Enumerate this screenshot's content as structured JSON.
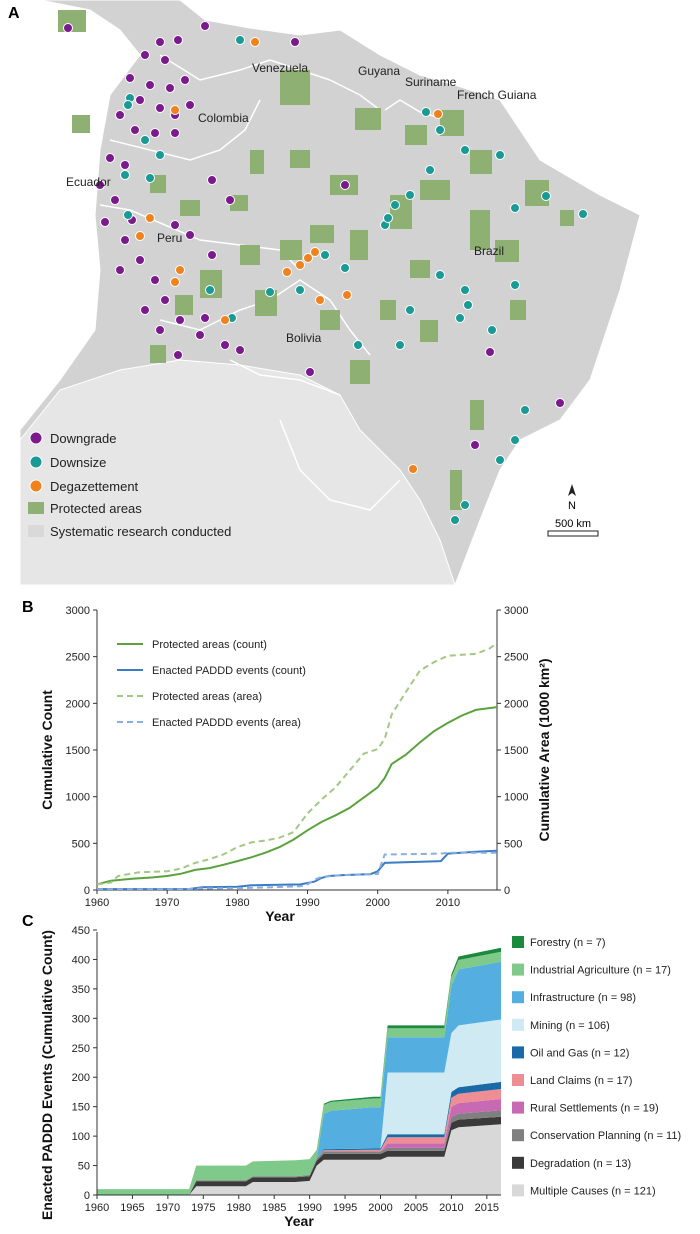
{
  "panels": {
    "a": "A",
    "b": "B",
    "c": "C"
  },
  "map": {
    "countries": [
      "Venezuela",
      "Guyana",
      "Suriname",
      "French Guiana",
      "Colombia",
      "Ecuador",
      "Peru",
      "Brazil",
      "Bolivia"
    ],
    "legend": [
      "Downgrade",
      "Downsize",
      "Degazettement",
      "Protected areas",
      "Systematic research conducted"
    ],
    "north": "N",
    "scale": "500 km",
    "colors": {
      "downgrade": "#7b1a8c",
      "downsize": "#1a9a95",
      "degazettement": "#f0821e",
      "protected": "#8fb073",
      "land": "#d0d0d0",
      "research": "#e4e4e4"
    }
  },
  "chart_data": [
    {
      "type": "line",
      "panel": "B",
      "xlabel": "Year",
      "ylabel": "Cumulative Count",
      "ylabel_right": "Cumulative Area (1000 km²)",
      "xlim": [
        1960,
        2017
      ],
      "ylim": [
        0,
        3000
      ],
      "xticks": [
        "1960",
        "1970",
        "1980",
        "1990",
        "2000",
        "2010"
      ],
      "yticks": [
        "0",
        "500",
        "1000",
        "1500",
        "2000",
        "2500",
        "3000"
      ],
      "series": [
        {
          "name": "Protected areas (count)",
          "color": "#5aa33c",
          "dash": false,
          "x": [
            1960,
            1962,
            1965,
            1968,
            1970,
            1972,
            1974,
            1976,
            1978,
            1980,
            1982,
            1984,
            1986,
            1988,
            1990,
            1992,
            1994,
            1996,
            1998,
            2000,
            2001,
            2002,
            2004,
            2006,
            2008,
            2010,
            2012,
            2014,
            2017
          ],
          "y": [
            60,
            100,
            120,
            135,
            150,
            175,
            215,
            235,
            270,
            310,
            350,
            400,
            460,
            540,
            640,
            730,
            800,
            880,
            990,
            1100,
            1200,
            1350,
            1450,
            1580,
            1700,
            1790,
            1870,
            1930,
            1960
          ]
        },
        {
          "name": "Enacted PADDD events (count)",
          "color": "#3a7cc6",
          "dash": false,
          "x": [
            1960,
            1973,
            1975,
            1980,
            1982,
            1985,
            1989,
            1990,
            1991,
            1992,
            1993,
            1995,
            1999,
            2000,
            2001,
            2005,
            2009,
            2010,
            2014,
            2017
          ],
          "y": [
            10,
            10,
            30,
            35,
            50,
            55,
            60,
            75,
            90,
            130,
            150,
            160,
            170,
            200,
            290,
            300,
            310,
            390,
            410,
            420
          ]
        },
        {
          "name": "Protected areas (area)",
          "color": "#a3c885",
          "dash": true,
          "x": [
            1960,
            1962,
            1963,
            1966,
            1970,
            1972,
            1974,
            1976,
            1978,
            1980,
            1982,
            1984,
            1986,
            1988,
            1990,
            1992,
            1994,
            1996,
            1998,
            2000,
            2001,
            2002,
            2004,
            2006,
            2008,
            2010,
            2012,
            2014,
            2016,
            2017
          ],
          "y": [
            60,
            80,
            150,
            190,
            200,
            230,
            290,
            330,
            380,
            460,
            510,
            530,
            560,
            620,
            820,
            970,
            1100,
            1280,
            1460,
            1510,
            1620,
            1880,
            2120,
            2350,
            2440,
            2510,
            2520,
            2530,
            2590,
            2650
          ]
        },
        {
          "name": "Enacted PADDD events (area)",
          "color": "#8aaee0",
          "dash": true,
          "x": [
            1960,
            1972,
            1974,
            1980,
            1985,
            1989,
            1990,
            1991,
            1992,
            1995,
            2000,
            2001,
            2005,
            2009,
            2010,
            2017
          ],
          "y": [
            5,
            5,
            15,
            20,
            30,
            40,
            60,
            110,
            140,
            160,
            170,
            380,
            385,
            390,
            400,
            400
          ]
        }
      ]
    },
    {
      "type": "area",
      "panel": "C",
      "xlabel": "Year",
      "ylabel": "Enacted PADDD Events (Cumulative Count)",
      "xlim": [
        1960,
        2017
      ],
      "ylim": [
        0,
        450
      ],
      "xticks": [
        "1960",
        "1965",
        "1970",
        "1975",
        "1980",
        "1985",
        "1990",
        "1995",
        "2000",
        "2005",
        "2010",
        "2015"
      ],
      "yticks": [
        "0",
        "50",
        "100",
        "150",
        "200",
        "250",
        "300",
        "350",
        "400",
        "450"
      ],
      "x": [
        1960,
        1973,
        1974,
        1981,
        1982,
        1988,
        1990,
        1991,
        1992,
        1993,
        1999,
        2000,
        2001,
        2008,
        2009,
        2010,
        2011,
        2017
      ],
      "series": [
        {
          "name": "Multiple Causes",
          "label": "Multiple Causes (n = 121)",
          "color": "#d8d8d8",
          "values": [
            0,
            0,
            15,
            15,
            22,
            22,
            24,
            50,
            60,
            60,
            60,
            60,
            65,
            65,
            65,
            110,
            115,
            120
          ]
        },
        {
          "name": "Degradation",
          "label": "Degradation (n = 13)",
          "color": "#3a3a3a",
          "values": [
            0,
            0,
            8,
            8,
            8,
            8,
            8,
            8,
            10,
            10,
            10,
            10,
            10,
            10,
            10,
            13,
            13,
            13
          ]
        },
        {
          "name": "Conservation Planning",
          "label": "Conservation Planning (n = 11)",
          "color": "#808080",
          "values": [
            0,
            0,
            2,
            2,
            2,
            2,
            2,
            4,
            4,
            4,
            4,
            4,
            5,
            5,
            5,
            10,
            10,
            11
          ]
        },
        {
          "name": "Rural Settlements",
          "label": "Rural Settlements (n = 19)",
          "color": "#c76ab3",
          "values": [
            0,
            0,
            0,
            0,
            0,
            0,
            0,
            0,
            0,
            0,
            0,
            0,
            8,
            8,
            8,
            17,
            18,
            19
          ]
        },
        {
          "name": "Land Claims",
          "label": "Land Claims (n = 17)",
          "color": "#ee8e94",
          "values": [
            0,
            0,
            0,
            0,
            0,
            0,
            0,
            0,
            2,
            2,
            3,
            3,
            10,
            10,
            10,
            15,
            16,
            17
          ]
        },
        {
          "name": "Oil and Gas",
          "label": "Oil and Gas (n = 12)",
          "color": "#1a6aa8",
          "values": [
            0,
            0,
            0,
            0,
            0,
            0,
            0,
            0,
            2,
            2,
            2,
            2,
            5,
            5,
            5,
            10,
            11,
            12
          ]
        },
        {
          "name": "Mining",
          "label": "Mining (n = 106)",
          "color": "#cfeaf2",
          "values": [
            0,
            0,
            0,
            0,
            0,
            0,
            0,
            0,
            0,
            0,
            0,
            0,
            105,
            105,
            105,
            100,
            105,
            106
          ]
        },
        {
          "name": "Infrastructure",
          "label": "Infrastructure (n = 98)",
          "color": "#55aee0",
          "values": [
            0,
            0,
            0,
            0,
            0,
            0,
            0,
            0,
            60,
            65,
            70,
            70,
            60,
            60,
            60,
            80,
            95,
            98
          ]
        },
        {
          "name": "Industrial Agriculture",
          "label": "Industrial Agriculture (n = 17)",
          "color": "#7fc98a",
          "values": [
            10,
            10,
            25,
            25,
            25,
            27,
            27,
            15,
            15,
            15,
            15,
            15,
            15,
            15,
            15,
            15,
            16,
            17
          ]
        },
        {
          "name": "Forestry",
          "label": "Forestry (n = 7)",
          "color": "#1c8a3c",
          "values": [
            0,
            0,
            0,
            0,
            0,
            0,
            0,
            0,
            2,
            2,
            3,
            3,
            5,
            5,
            5,
            5,
            6,
            7
          ]
        }
      ]
    }
  ]
}
